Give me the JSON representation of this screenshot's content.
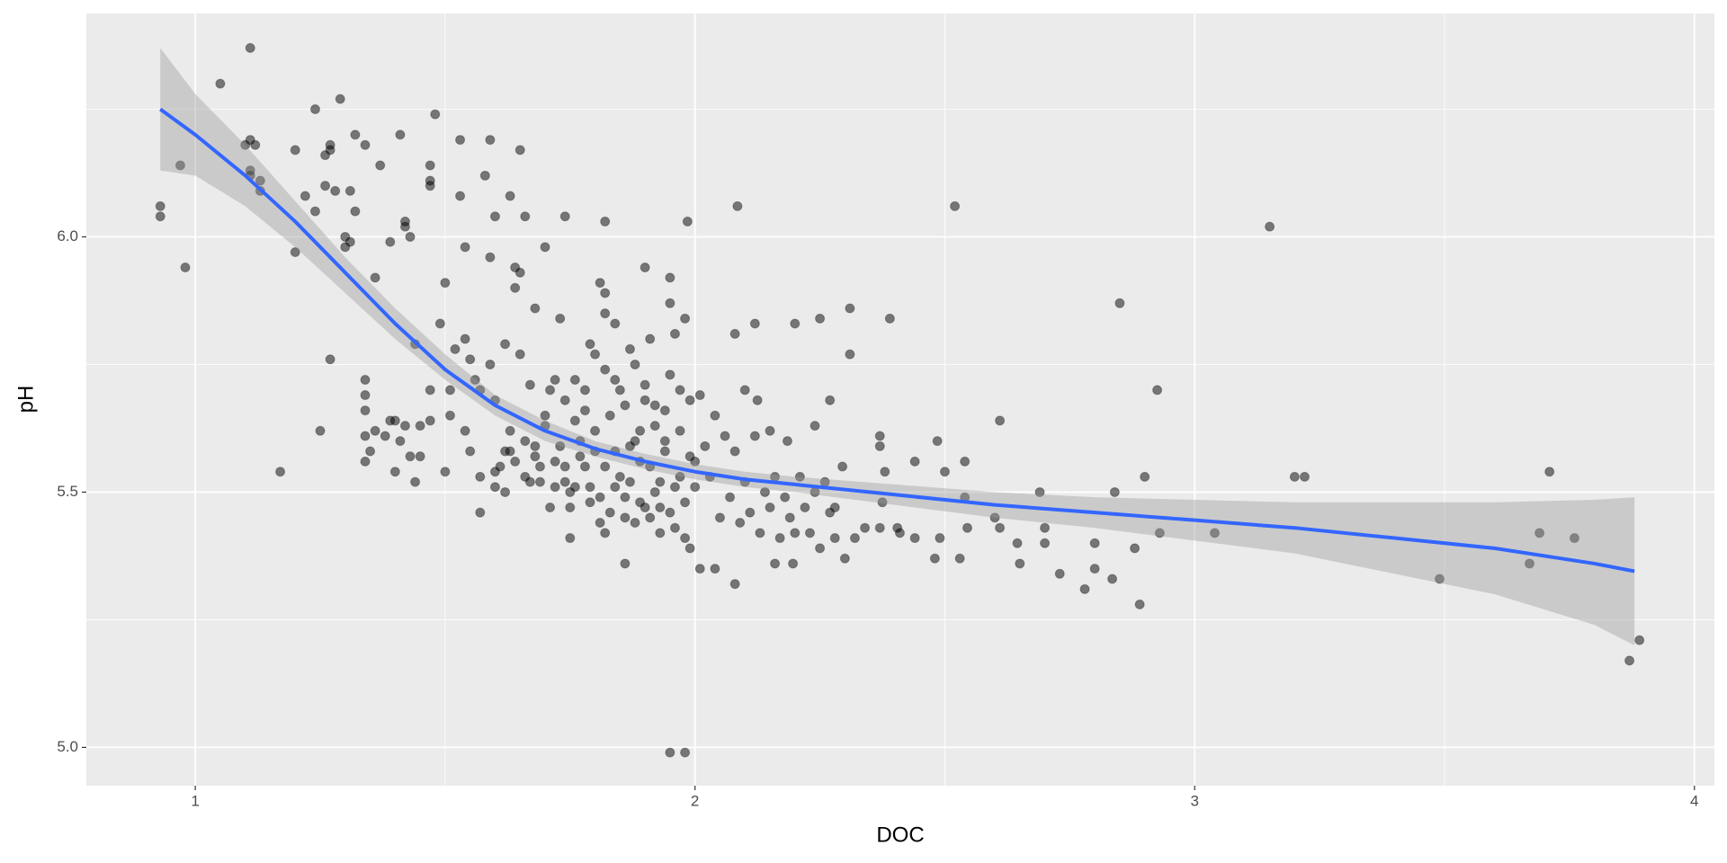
{
  "chart_data": {
    "type": "scatter",
    "x_label": "DOC",
    "y_label": "pH",
    "xlim": [
      0.782,
      4.04
    ],
    "ylim": [
      4.925,
      6.4375
    ],
    "xticks": [
      1,
      2,
      3,
      4
    ],
    "yticks": [
      {
        "value": 5.0,
        "label": "5.0"
      },
      5.5,
      {
        "value": 6.0,
        "label": "6.0"
      }
    ],
    "xminor": [
      1.5,
      2.5,
      3.5
    ],
    "yminor": [
      5.25,
      5.75,
      6.25
    ],
    "grid": true,
    "point_color": "#000000",
    "line_color": "#3366ff",
    "band_color": "#999999",
    "points": {
      "x": [
        0.93,
        0.93,
        0.97,
        0.98,
        1.05,
        1.11,
        1.1,
        1.11,
        1.12,
        1.11,
        1.11,
        1.13,
        1.13,
        1.17,
        1.2,
        1.2,
        1.22,
        1.24,
        1.24,
        1.25,
        1.26,
        1.26,
        1.27,
        1.27,
        1.27,
        1.28,
        1.29,
        1.3,
        1.3,
        1.31,
        1.31,
        1.32,
        1.32,
        1.34,
        1.34,
        1.34,
        1.34,
        1.34,
        1.34,
        1.35,
        1.36,
        1.36,
        1.37,
        1.38,
        1.39,
        1.39,
        1.4,
        1.4,
        1.41,
        1.41,
        1.42,
        1.42,
        1.42,
        1.43,
        1.43,
        1.44,
        1.44,
        1.45,
        1.45,
        1.47,
        1.47,
        1.47,
        1.47,
        1.48,
        1.47,
        1.49,
        1.5,
        1.5,
        1.51,
        1.51,
        1.52,
        1.53,
        1.53,
        1.54,
        1.54,
        1.54,
        1.55,
        1.55,
        1.56,
        1.57,
        1.57,
        1.57,
        1.58,
        1.59,
        1.59,
        1.59,
        1.6,
        1.6,
        1.6,
        1.6,
        1.61,
        1.62,
        1.62,
        1.63,
        1.63,
        1.63,
        1.64,
        1.64,
        1.65,
        1.65,
        1.65,
        1.66,
        1.66,
        1.67,
        1.67,
        1.68,
        1.68,
        1.69,
        1.7,
        1.7,
        1.71,
        1.71,
        1.72,
        1.73,
        1.74,
        1.74,
        1.75,
        1.75,
        1.76,
        1.76,
        1.77,
        1.78,
        1.79,
        1.79,
        1.8,
        1.81,
        1.81,
        1.82,
        1.82,
        1.82,
        1.82,
        1.82,
        1.83,
        1.84,
        1.84,
        1.85,
        1.86,
        1.86,
        1.87,
        1.87,
        1.88,
        1.89,
        1.89,
        1.9,
        1.9,
        1.91,
        1.91,
        1.92,
        1.93,
        1.93,
        1.94,
        1.95,
        1.95,
        1.95,
        1.96,
        1.96,
        1.97,
        1.98,
        1.98,
        1.99,
        1.99,
        1.95,
        1.98,
        1.985,
        1.62,
        1.64,
        1.66,
        1.68,
        1.69,
        1.72,
        1.73,
        1.74,
        1.75,
        1.76,
        1.77,
        1.78,
        1.79,
        1.8,
        1.81,
        1.82,
        1.83,
        1.84,
        1.85,
        1.86,
        1.87,
        1.88,
        1.89,
        1.9,
        1.91,
        1.92,
        1.93,
        1.94,
        1.95,
        1.96,
        1.97,
        1.98,
        1.99,
        1.7,
        1.72,
        1.74,
        1.78,
        1.8,
        1.84,
        1.86,
        1.88,
        1.9,
        1.92,
        1.94,
        1.97,
        2.0,
        2.0,
        2.01,
        2.02,
        2.03,
        2.04,
        2.05,
        2.06,
        2.07,
        2.08,
        2.09,
        2.1,
        2.11,
        2.12,
        2.13,
        2.14,
        2.15,
        2.16,
        2.17,
        2.18,
        2.19,
        2.21,
        2.22,
        2.23,
        2.24,
        2.26,
        2.27,
        2.01,
        2.04,
        2.08,
        2.08,
        2.085,
        2.1,
        2.12,
        2.125,
        2.15,
        2.16,
        2.185,
        2.196,
        2.2,
        2.2,
        2.24,
        2.25,
        2.25,
        2.27,
        2.28,
        2.28,
        2.295,
        2.3,
        2.31,
        2.31,
        2.32,
        2.34,
        2.37,
        2.37,
        2.37,
        2.375,
        2.38,
        2.39,
        2.405,
        2.41,
        2.44,
        2.44,
        2.48,
        2.485,
        2.49,
        2.5,
        2.52,
        2.53,
        2.54,
        2.54,
        2.545,
        2.6,
        2.61,
        2.61,
        2.645,
        2.65,
        2.69,
        2.7,
        2.7,
        2.73,
        2.78,
        2.8,
        2.8,
        2.835,
        2.84,
        2.85,
        2.88,
        2.89,
        2.9,
        2.925,
        2.93,
        3.04,
        3.15,
        3.2,
        3.22,
        3.49,
        3.67,
        3.69,
        3.71,
        3.76,
        3.87,
        3.89
      ],
      "y": [
        6.06,
        6.04,
        6.14,
        5.94,
        6.3,
        6.37,
        6.18,
        6.19,
        6.18,
        6.13,
        6.12,
        6.11,
        6.09,
        5.54,
        5.97,
        6.17,
        6.08,
        6.25,
        6.05,
        5.62,
        6.1,
        6.16,
        6.17,
        6.18,
        5.76,
        6.09,
        6.27,
        6.0,
        5.98,
        5.99,
        6.09,
        6.2,
        6.05,
        6.18,
        5.72,
        5.69,
        5.66,
        5.61,
        5.56,
        5.58,
        5.62,
        5.92,
        6.14,
        5.61,
        5.99,
        5.64,
        5.54,
        5.64,
        6.2,
        5.6,
        6.03,
        6.02,
        5.63,
        6.0,
        5.57,
        5.52,
        5.79,
        5.63,
        5.57,
        5.7,
        6.14,
        6.11,
        6.1,
        6.24,
        5.64,
        5.83,
        5.54,
        5.91,
        5.7,
        5.65,
        5.78,
        6.19,
        6.08,
        5.98,
        5.8,
        5.62,
        5.76,
        5.58,
        5.72,
        5.7,
        5.53,
        5.46,
        6.12,
        5.75,
        6.19,
        5.96,
        5.68,
        5.51,
        5.54,
        6.04,
        5.55,
        5.79,
        5.5,
        5.58,
        5.62,
        6.08,
        5.94,
        5.9,
        6.17,
        5.77,
        5.93,
        6.04,
        5.6,
        5.52,
        5.71,
        5.86,
        5.59,
        5.55,
        5.98,
        5.63,
        5.47,
        5.7,
        5.51,
        5.84,
        6.04,
        5.55,
        5.41,
        5.5,
        5.72,
        5.64,
        5.57,
        5.66,
        5.48,
        5.79,
        5.62,
        5.44,
        5.91,
        5.74,
        5.85,
        5.89,
        6.03,
        5.42,
        5.65,
        5.51,
        5.83,
        5.7,
        5.45,
        5.36,
        5.59,
        5.78,
        5.75,
        5.48,
        5.62,
        5.94,
        5.71,
        5.55,
        5.8,
        5.67,
        5.42,
        5.52,
        5.66,
        5.92,
        5.73,
        5.87,
        5.81,
        5.51,
        5.62,
        5.84,
        5.48,
        5.68,
        5.39,
        4.99,
        4.99,
        6.03,
        5.58,
        5.56,
        5.53,
        5.57,
        5.52,
        5.56,
        5.59,
        5.52,
        5.47,
        5.51,
        5.6,
        5.55,
        5.51,
        5.58,
        5.49,
        5.55,
        5.46,
        5.58,
        5.53,
        5.49,
        5.52,
        5.44,
        5.56,
        5.47,
        5.45,
        5.5,
        5.47,
        5.58,
        5.46,
        5.43,
        5.53,
        5.41,
        5.57,
        5.65,
        5.72,
        5.68,
        5.7,
        5.77,
        5.72,
        5.67,
        5.6,
        5.68,
        5.63,
        5.6,
        5.7,
        5.56,
        5.51,
        5.69,
        5.59,
        5.53,
        5.65,
        5.45,
        5.61,
        5.49,
        5.58,
        5.44,
        5.52,
        5.46,
        5.61,
        5.42,
        5.5,
        5.47,
        5.53,
        5.41,
        5.49,
        5.45,
        5.53,
        5.47,
        5.42,
        5.5,
        5.52,
        5.46,
        5.35,
        5.35,
        5.81,
        5.32,
        6.06,
        5.7,
        5.83,
        5.68,
        5.62,
        5.36,
        5.6,
        5.36,
        5.83,
        5.42,
        5.63,
        5.84,
        5.39,
        5.68,
        5.47,
        5.41,
        5.55,
        5.37,
        5.77,
        5.86,
        5.41,
        5.43,
        5.61,
        5.59,
        5.43,
        5.48,
        5.54,
        5.84,
        5.43,
        5.42,
        5.41,
        5.56,
        5.37,
        5.6,
        5.41,
        5.54,
        6.06,
        5.37,
        5.56,
        5.49,
        5.43,
        5.45,
        5.43,
        5.64,
        5.4,
        5.36,
        5.5,
        5.43,
        5.4,
        5.34,
        5.31,
        5.4,
        5.35,
        5.33,
        5.5,
        5.87,
        5.39,
        5.28,
        5.53,
        5.7,
        5.42,
        5.42,
        6.02,
        5.53,
        5.53,
        5.33,
        5.36,
        5.42,
        5.54,
        5.41,
        5.17,
        5.21
      ]
    },
    "smooth": {
      "x": [
        0.93,
        1.0,
        1.1,
        1.2,
        1.3,
        1.4,
        1.5,
        1.6,
        1.7,
        1.8,
        1.9,
        2.0,
        2.1,
        2.2,
        2.4,
        2.6,
        2.8,
        3.0,
        3.2,
        3.4,
        3.6,
        3.8,
        3.88
      ],
      "y": [
        6.25,
        6.2,
        6.12,
        6.03,
        5.93,
        5.83,
        5.74,
        5.67,
        5.62,
        5.585,
        5.56,
        5.54,
        5.525,
        5.515,
        5.495,
        5.475,
        5.46,
        5.445,
        5.43,
        5.41,
        5.39,
        5.36,
        5.345
      ],
      "lower": [
        6.13,
        6.12,
        6.06,
        5.98,
        5.89,
        5.8,
        5.72,
        5.65,
        5.6,
        5.57,
        5.545,
        5.525,
        5.51,
        5.5,
        5.475,
        5.45,
        5.43,
        5.405,
        5.38,
        5.34,
        5.3,
        5.24,
        5.2
      ],
      "upper": [
        6.37,
        6.28,
        6.18,
        6.07,
        5.96,
        5.86,
        5.77,
        5.69,
        5.64,
        5.6,
        5.575,
        5.555,
        5.54,
        5.53,
        5.515,
        5.5,
        5.49,
        5.485,
        5.48,
        5.48,
        5.48,
        5.485,
        5.49
      ]
    }
  }
}
